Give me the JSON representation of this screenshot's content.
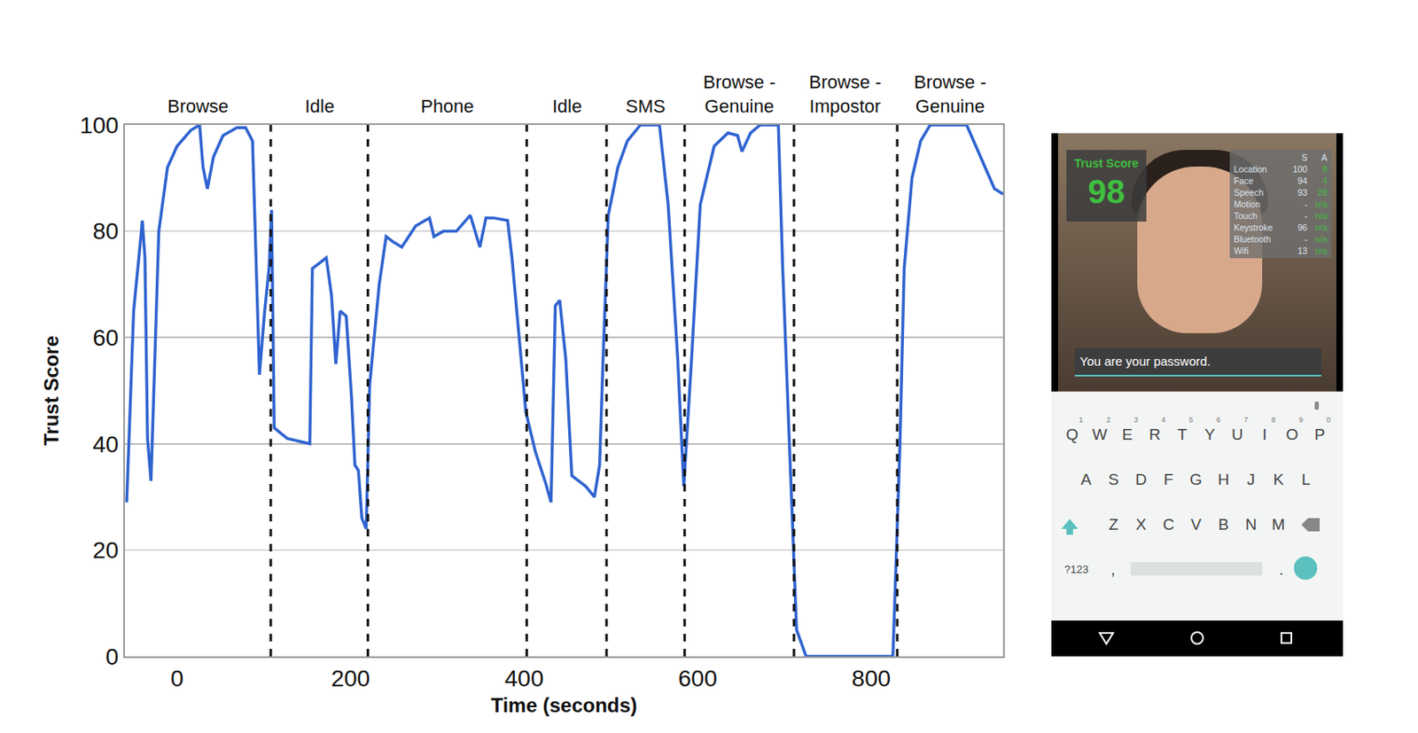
{
  "chart_data": {
    "type": "line",
    "x_label": "Time (seconds)",
    "y_label": "Trust Score",
    "color": "#2f63d0",
    "grid": "y",
    "xlim": [
      -60,
      952
    ],
    "xticks": [
      0,
      200,
      400,
      600,
      800
    ],
    "ylim": [
      0,
      100
    ],
    "yticks": [
      0,
      20,
      40,
      60,
      80,
      100
    ],
    "phases": [
      {
        "label": "Browse",
        "start": -60,
        "end": 108
      },
      {
        "label": "Idle",
        "start": 108,
        "end": 220
      },
      {
        "label": "Phone",
        "start": 220,
        "end": 403
      },
      {
        "label": "Idle",
        "start": 403,
        "end": 495
      },
      {
        "label": "SMS",
        "start": 495,
        "end": 585
      },
      {
        "label": "Browse - Genuine",
        "start": 585,
        "end": 711
      },
      {
        "label": "Browse - Impostor",
        "start": 711,
        "end": 830
      },
      {
        "label": "Browse - Genuine",
        "start": 830,
        "end": 952
      }
    ],
    "x": [
      -58,
      -55,
      -50,
      -44,
      -40,
      -37,
      -34,
      -30,
      -26,
      -21,
      -11,
      0,
      16,
      26,
      30,
      35,
      42,
      53,
      69,
      79,
      87,
      91,
      95,
      101,
      106,
      109,
      112,
      127,
      153,
      156,
      164,
      172,
      178,
      183,
      188,
      195,
      201,
      205,
      209,
      213,
      218,
      222,
      233,
      241,
      249,
      259,
      275,
      291,
      296,
      307,
      322,
      338,
      349,
      356,
      365,
      381,
      386,
      394,
      402,
      413,
      425,
      431,
      436,
      441,
      448,
      455,
      471,
      481,
      487,
      491,
      497,
      508,
      519,
      534,
      556,
      566,
      577,
      584,
      593,
      603,
      619,
      635,
      646,
      651,
      661,
      672,
      693,
      698,
      707,
      714,
      725,
      825,
      833,
      838,
      847,
      857,
      868,
      910,
      926,
      942,
      952
    ],
    "values": [
      29,
      44,
      65,
      75,
      82,
      75,
      41,
      33,
      56,
      80,
      92,
      96,
      99,
      100,
      92,
      88,
      94,
      98,
      99.5,
      99.5,
      97,
      73,
      53,
      65,
      73,
      84,
      43,
      41,
      40,
      73,
      74,
      75,
      68,
      55,
      65,
      64,
      49,
      36,
      35,
      26,
      24,
      51,
      70,
      79,
      78,
      77,
      81,
      82.5,
      79,
      80,
      80,
      83,
      77,
      82.5,
      82.5,
      82,
      75,
      60,
      46,
      38.5,
      32.5,
      29,
      66,
      67,
      56,
      34,
      32,
      30,
      36,
      56,
      83,
      92,
      97,
      100,
      100,
      85,
      56,
      32,
      56,
      85,
      96,
      98.5,
      98,
      95,
      98.5,
      100,
      100,
      73,
      34,
      5,
      0,
      0,
      39,
      73,
      90,
      97,
      100,
      100,
      94,
      88,
      87
    ]
  },
  "phone": {
    "trust_score_label": "Trust Score",
    "trust_score": 98,
    "stats_columns": [
      "S",
      "A"
    ],
    "stats_rows": [
      [
        "Location",
        "100",
        "8"
      ],
      [
        "Face",
        "94",
        "4"
      ],
      [
        "Speech",
        "93",
        "28"
      ],
      [
        "Motion",
        "-",
        "n/a"
      ],
      [
        "Touch",
        "-",
        "n/a"
      ],
      [
        "Keystroke",
        "96",
        "n/a"
      ],
      [
        "Bluetooth",
        "-",
        "n/a"
      ],
      [
        "Wifi",
        "13",
        "n/a"
      ]
    ],
    "input_text": "You are your password.",
    "keyboard_rows": [
      [
        "Q",
        "W",
        "E",
        "R",
        "T",
        "Y",
        "U",
        "I",
        "O",
        "P"
      ],
      [
        "A",
        "S",
        "D",
        "F",
        "G",
        "H",
        "J",
        "K",
        "L"
      ],
      [
        "Z",
        "X",
        "C",
        "V",
        "B",
        "N",
        "M"
      ]
    ],
    "key_hints": [
      "1",
      "2",
      "3",
      "4",
      "5",
      "6",
      "7",
      "8",
      "9",
      "0"
    ],
    "bottom_keys": [
      "?123",
      ",",
      "."
    ]
  }
}
